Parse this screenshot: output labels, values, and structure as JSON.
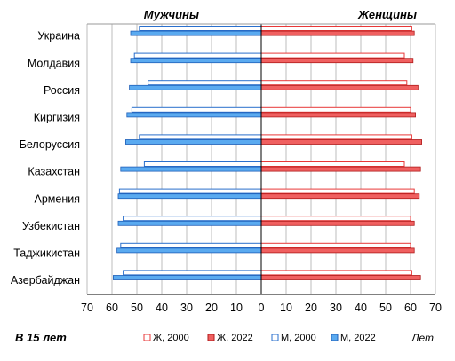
{
  "chart_data": {
    "type": "bar",
    "orientation": "horizontal-butterfly",
    "categories": [
      "Украина",
      "Молдавия",
      "Россия",
      "Киргизия",
      "Белоруссия",
      "Казахстан",
      "Армения",
      "Узбекистан",
      "Таджикистан",
      "Азербайджан"
    ],
    "left_title": "Мужчины",
    "right_title": "Женщины",
    "corner_note": "В 15 лет",
    "unit": "Лет",
    "xlim": [
      0,
      70
    ],
    "xticks": [
      70,
      60,
      50,
      40,
      30,
      20,
      10,
      0,
      10,
      20,
      30,
      40,
      50,
      60,
      70
    ],
    "grid": "vertical",
    "legend_position": "bottom-right",
    "series": [
      {
        "name": "Ж, 2000",
        "side": "right",
        "style": "outline",
        "color": "#e83838",
        "values": [
          60.5,
          57.5,
          58.5,
          60.0,
          60.5,
          57.5,
          61.5,
          60.0,
          60.0,
          60.5
        ]
      },
      {
        "name": "Ж, 2022",
        "side": "right",
        "style": "filled",
        "color": "#f06060",
        "values": [
          61.5,
          61.0,
          63.0,
          62.0,
          64.5,
          64.0,
          63.5,
          61.5,
          61.5,
          64.0
        ]
      },
      {
        "name": "М, 2000",
        "side": "left",
        "style": "outline",
        "color": "#2a6fcc",
        "values": [
          49.0,
          51.0,
          45.5,
          52.0,
          49.0,
          47.0,
          57.0,
          55.5,
          56.5,
          55.5
        ]
      },
      {
        "name": "М, 2022",
        "side": "left",
        "style": "filled",
        "color": "#5aaaf0",
        "values": [
          52.5,
          52.5,
          53.0,
          54.0,
          54.5,
          56.5,
          57.5,
          57.5,
          58.0,
          59.5
        ]
      }
    ]
  }
}
